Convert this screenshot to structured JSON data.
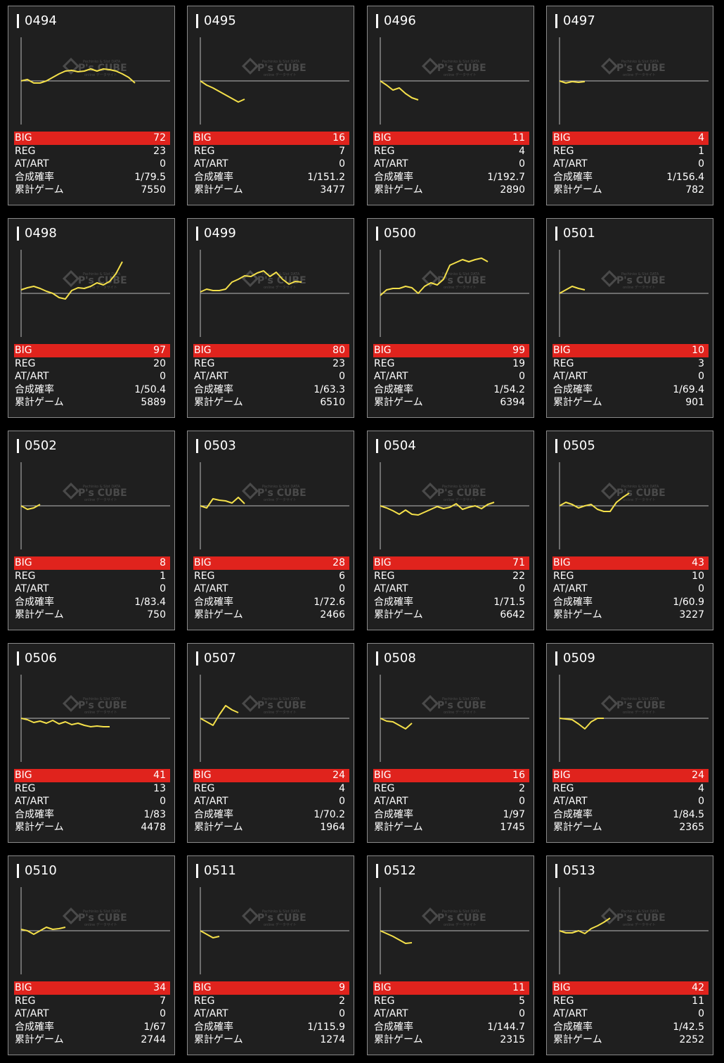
{
  "labels": {
    "big": "BIG",
    "reg": "REG",
    "atart": "AT/ART",
    "prob": "合成確率",
    "games": "累計ゲーム"
  },
  "line_color": "#f4e04a",
  "big_color": "#e0231d",
  "watermark": {
    "top": "Pachinko & Slot DATA",
    "main": "P's CUBE",
    "sub": "online データサイト"
  },
  "machines": [
    {
      "id": "0494",
      "big": "72",
      "reg": "23",
      "atart": "0",
      "prob": "1/79.5",
      "games": "7550",
      "trend": [
        0,
        2,
        -3,
        -3,
        0,
        5,
        10,
        14,
        15,
        13,
        14,
        17,
        14,
        17,
        16,
        14,
        10,
        5,
        -3
      ]
    },
    {
      "id": "0495",
      "big": "16",
      "reg": "7",
      "atart": "0",
      "prob": "1/151.2",
      "games": "3477",
      "trend": [
        0,
        -6,
        -10,
        -15,
        -20,
        -25,
        -30,
        -26
      ]
    },
    {
      "id": "0496",
      "big": "11",
      "reg": "4",
      "atart": "0",
      "prob": "1/192.7",
      "games": "2890",
      "trend": [
        0,
        -6,
        -13,
        -10,
        -18,
        -24,
        -27
      ]
    },
    {
      "id": "0497",
      "big": "4",
      "reg": "1",
      "atart": "0",
      "prob": "1/156.4",
      "games": "782",
      "trend": [
        0,
        -3,
        -1,
        -2,
        -1
      ]
    },
    {
      "id": "0498",
      "big": "97",
      "reg": "20",
      "atart": "0",
      "prob": "1/50.4",
      "games": "5889",
      "trend": [
        5,
        8,
        10,
        7,
        3,
        0,
        -6,
        -8,
        4,
        8,
        7,
        10,
        15,
        12,
        17,
        28,
        45
      ]
    },
    {
      "id": "0499",
      "big": "80",
      "reg": "23",
      "atart": "0",
      "prob": "1/63.3",
      "games": "6510",
      "trend": [
        2,
        6,
        4,
        4,
        6,
        16,
        20,
        25,
        24,
        29,
        32,
        24,
        30,
        20,
        13,
        17,
        16
      ]
    },
    {
      "id": "0500",
      "big": "99",
      "reg": "19",
      "atart": "0",
      "prob": "1/54.2",
      "games": "6394",
      "trend": [
        -3,
        5,
        7,
        7,
        10,
        8,
        0,
        10,
        15,
        12,
        20,
        40,
        44,
        48,
        45,
        48,
        50,
        45
      ]
    },
    {
      "id": "0501",
      "big": "10",
      "reg": "3",
      "atart": "0",
      "prob": "1/69.4",
      "games": "901",
      "trend": [
        0,
        5,
        10,
        7,
        5
      ]
    },
    {
      "id": "0502",
      "big": "8",
      "reg": "1",
      "atart": "0",
      "prob": "1/83.4",
      "games": "750",
      "trend": [
        0,
        -5,
        -3,
        2
      ]
    },
    {
      "id": "0503",
      "big": "28",
      "reg": "6",
      "atart": "0",
      "prob": "1/72.6",
      "games": "2466",
      "trend": [
        0,
        -3,
        10,
        8,
        7,
        4,
        12,
        3
      ]
    },
    {
      "id": "0504",
      "big": "71",
      "reg": "22",
      "atart": "0",
      "prob": "1/71.5",
      "games": "6642",
      "trend": [
        0,
        -3,
        -7,
        -12,
        -6,
        -12,
        -13,
        -9,
        -5,
        -1,
        -4,
        -2,
        3,
        -5,
        -2,
        0,
        -4,
        2,
        5
      ]
    },
    {
      "id": "0505",
      "big": "43",
      "reg": "10",
      "atart": "0",
      "prob": "1/60.9",
      "games": "3227",
      "trend": [
        0,
        5,
        2,
        -3,
        0,
        2,
        -5,
        -8,
        -8,
        5,
        12,
        18
      ]
    },
    {
      "id": "0506",
      "big": "41",
      "reg": "13",
      "atart": "0",
      "prob": "1/83",
      "games": "4478",
      "trend": [
        0,
        -2,
        -6,
        -4,
        -7,
        -3,
        -8,
        -5,
        -9,
        -7,
        -10,
        -12,
        -11,
        -12,
        -12
      ]
    },
    {
      "id": "0507",
      "big": "24",
      "reg": "4",
      "atart": "0",
      "prob": "1/70.2",
      "games": "1964",
      "trend": [
        0,
        -5,
        -10,
        5,
        18,
        12,
        8
      ]
    },
    {
      "id": "0508",
      "big": "16",
      "reg": "2",
      "atart": "0",
      "prob": "1/97",
      "games": "1745",
      "trend": [
        0,
        -4,
        -5,
        -10,
        -15,
        -7
      ]
    },
    {
      "id": "0509",
      "big": "24",
      "reg": "4",
      "atart": "0",
      "prob": "1/84.5",
      "games": "2365",
      "trend": [
        0,
        -1,
        -2,
        -8,
        -15,
        -5,
        0,
        0
      ]
    },
    {
      "id": "0510",
      "big": "34",
      "reg": "7",
      "atart": "0",
      "prob": "1/67",
      "games": "2744",
      "trend": [
        2,
        0,
        -5,
        0,
        5,
        2,
        3,
        5
      ]
    },
    {
      "id": "0511",
      "big": "9",
      "reg": "2",
      "atart": "0",
      "prob": "1/115.9",
      "games": "1274",
      "trend": [
        0,
        -5,
        -10,
        -8
      ]
    },
    {
      "id": "0512",
      "big": "11",
      "reg": "5",
      "atart": "0",
      "prob": "1/144.7",
      "games": "2315",
      "trend": [
        0,
        -4,
        -8,
        -13,
        -18,
        -17
      ]
    },
    {
      "id": "0513",
      "big": "42",
      "reg": "11",
      "atart": "0",
      "prob": "1/42.5",
      "games": "2252",
      "trend": [
        0,
        -3,
        -3,
        0,
        -4,
        3,
        7,
        12,
        18
      ]
    }
  ]
}
